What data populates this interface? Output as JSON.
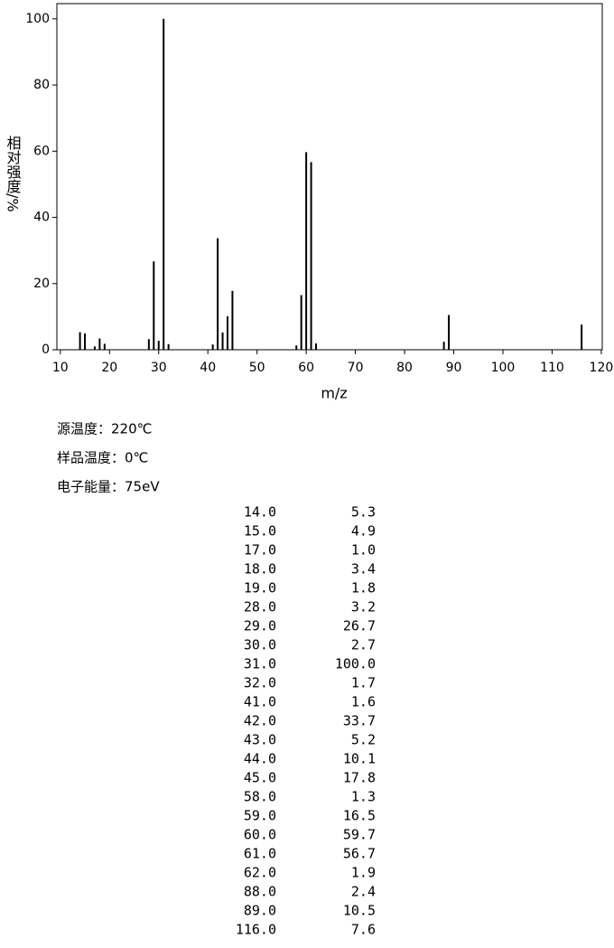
{
  "chart_data": {
    "type": "bar",
    "xlabel": "m/z",
    "ylabel": "相对强度/%",
    "x": [
      14,
      15,
      17,
      18,
      19,
      28,
      29,
      30,
      31,
      32,
      41,
      42,
      43,
      44,
      45,
      58,
      59,
      60,
      61,
      62,
      88,
      89,
      116
    ],
    "x_labels": [
      "14.0",
      "15.0",
      "17.0",
      "18.0",
      "19.0",
      "28.0",
      "29.0",
      "30.0",
      "31.0",
      "32.0",
      "41.0",
      "42.0",
      "43.0",
      "44.0",
      "45.0",
      "58.0",
      "59.0",
      "60.0",
      "61.0",
      "62.0",
      "88.0",
      "89.0",
      "116.0"
    ],
    "values": [
      5.3,
      4.9,
      1.0,
      3.4,
      1.8,
      3.2,
      26.7,
      2.7,
      100.0,
      1.7,
      1.6,
      33.7,
      5.2,
      10.1,
      17.8,
      1.3,
      16.5,
      59.7,
      56.7,
      1.9,
      2.4,
      10.5,
      7.6
    ],
    "value_labels": [
      "5.3",
      "4.9",
      "1.0",
      "3.4",
      "1.8",
      "3.2",
      "26.7",
      "2.7",
      "100.0",
      "1.7",
      "1.6",
      "33.7",
      "5.2",
      "10.1",
      "17.8",
      "1.3",
      "16.5",
      "59.7",
      "56.7",
      "1.9",
      "2.4",
      "10.5",
      "7.6"
    ],
    "color": "#000000",
    "xlim": [
      9.3,
      120.2
    ],
    "xticks": [
      10,
      20,
      30,
      40,
      50,
      60,
      70,
      80,
      90,
      100,
      110,
      120
    ],
    "ylim": [
      0,
      104.6
    ],
    "yticks": [
      0,
      20,
      40,
      60,
      80,
      100
    ]
  },
  "conditions": [
    "源温度：220℃",
    "样品温度：0℃",
    "电子能量：75eV"
  ]
}
